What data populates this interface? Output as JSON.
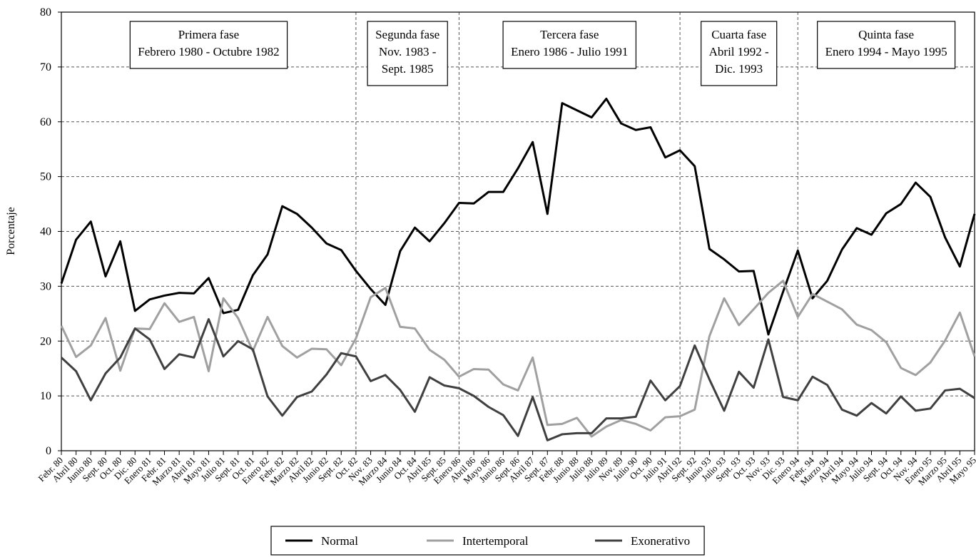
{
  "chart_data": {
    "type": "line",
    "y_label": "Porcentaje",
    "categories": [
      "Febr. 80",
      "Abril 80",
      "Junio 80",
      "Sept. 80",
      "Oct. 80",
      "Dic. 80",
      "Enero 81",
      "Febr. 81",
      "Marzo 81",
      "Abril 81",
      "Mayo 81",
      "Julio 81",
      "Sept. 81",
      "Oct. 81",
      "Enero 82",
      "Febr. 82",
      "Marzo 82",
      "Abril 82",
      "Junio 82",
      "Sept. 82",
      "Oct. 82",
      "Nov. 83",
      "Marzo 84",
      "Junio 84",
      "Oct. 84",
      "Abril 85",
      "Sept. 85",
      "Enero 86",
      "Abril 86",
      "Mayo 86",
      "Junio 86",
      "Sept. 86",
      "Abril 87",
      "Sept. 87",
      "Febr. 88",
      "Junio 88",
      "Julio 88",
      "Julio 89",
      "Nov. 89",
      "Julio 90",
      "Oct. 90",
      "Julio 91",
      "Abril 92",
      "Sept. 92",
      "Junio 93",
      "Julio 93",
      "Sept. 93",
      "Oct. 93",
      "Nov. 93",
      "Dic. 93",
      "Enero 94",
      "Febr. 94",
      "Marzo 94",
      "Abril 94",
      "Mayo 94",
      "Julio 94",
      "Sept. 94",
      "Oct. 94",
      "Nov. 94",
      "Enero 95",
      "Marzo 95",
      "Abril 95",
      "Mayo 95"
    ],
    "series": [
      {
        "name": "Normal",
        "color": "#000000",
        "values": [
          30.5,
          38.5,
          41.8,
          31.8,
          38.2,
          25.5,
          27.6,
          28.3,
          28.8,
          28.7,
          31.5,
          25.1,
          25.7,
          32,
          35.8,
          44.6,
          43.2,
          40.7,
          37.8,
          36.6,
          32.8,
          29.5,
          26.6,
          36.4,
          40.7,
          38.2,
          41.5,
          45.2,
          45.1,
          47.2,
          47.2,
          51.5,
          56.3,
          43.2,
          63.4,
          62.1,
          60.8,
          64.2,
          59.7,
          58.5,
          59,
          53.5,
          54.8,
          51.9,
          36.8,
          34.9,
          32.7,
          32.8,
          21.2,
          29,
          36.5,
          27.8,
          31,
          36.7,
          40.6,
          39.4,
          43.3,
          45,
          48.9,
          46.3,
          38.9,
          33.6,
          43.2
        ]
      },
      {
        "name": "Intertemporal",
        "color": "#a0a0a0",
        "values": [
          22.8,
          17.1,
          19.2,
          24.2,
          14.6,
          22.3,
          22.2,
          26.9,
          23.5,
          24.4,
          14.5,
          27.8,
          24.2,
          18.2,
          24.4,
          19.1,
          17,
          18.6,
          18.5,
          15.6,
          20.5,
          28,
          29.7,
          22.6,
          22.3,
          18.4,
          16.6,
          13.5,
          14.9,
          14.8,
          12.1,
          11,
          17,
          4.7,
          4.9,
          6,
          2.6,
          4.4,
          5.6,
          4.9,
          3.7,
          6.1,
          6.3,
          7.5,
          20.9,
          27.8,
          22.9,
          25.8,
          28.8,
          31,
          24.4,
          28.6,
          27.2,
          25.8,
          23,
          22,
          19.8,
          15.1,
          13.8,
          16.1,
          20.1,
          25.2,
          17.2
        ]
      },
      {
        "name": "Exonerativo",
        "color": "#404040",
        "values": [
          17,
          14.5,
          9.2,
          14.1,
          17,
          22.3,
          20.3,
          14.9,
          17.6,
          17,
          24,
          17.2,
          20,
          18.5,
          9.9,
          6.4,
          9.8,
          10.8,
          13.9,
          17.8,
          17.2,
          12.7,
          13.8,
          11.1,
          7.1,
          13.4,
          11.9,
          11.4,
          10,
          8,
          6.5,
          2.7,
          9.8,
          1.9,
          3,
          3.2,
          3.2,
          5.9,
          5.9,
          6.2,
          12.8,
          9.2,
          11.8,
          19.2,
          13,
          7.3,
          14.4,
          11.5,
          20.3,
          9.8,
          9.2,
          13.5,
          12,
          7.5,
          6.4,
          8.7,
          6.8,
          9.9,
          7.3,
          7.7,
          11,
          11.3,
          9.6
        ]
      }
    ],
    "ylim": [
      0,
      80
    ],
    "yticks": [
      0,
      10,
      20,
      30,
      40,
      50,
      60,
      70,
      80
    ],
    "grid": true,
    "phase_dividers": [
      "Oct. 82",
      "Enero 86",
      "Abril 92",
      "Enero 94"
    ],
    "phases": [
      {
        "lines": [
          "Primera fase",
          "Febrero 1980 - Octubre 1982"
        ]
      },
      {
        "lines": [
          "Segunda fase",
          "Nov. 1983 -",
          "Sept. 1985"
        ]
      },
      {
        "lines": [
          "Tercera fase",
          "Enero 1986 - Julio 1991"
        ]
      },
      {
        "lines": [
          "Cuarta fase",
          "Abril 1992 -",
          "Dic. 1993"
        ]
      },
      {
        "lines": [
          "Quinta fase",
          "Enero 1994 - Mayo 1995"
        ]
      }
    ],
    "legend_position": "bottom"
  }
}
